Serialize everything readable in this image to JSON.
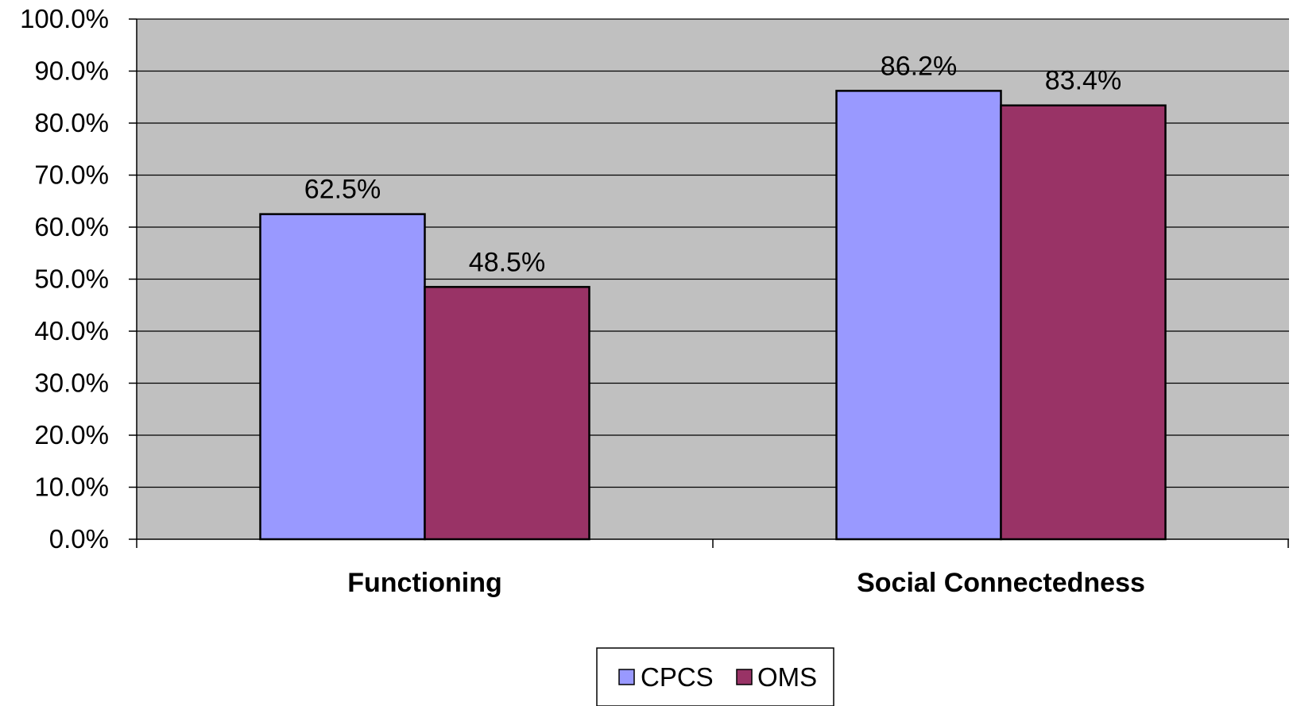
{
  "chart_data": {
    "type": "bar",
    "categories": [
      "Functioning",
      "Social Connectedness"
    ],
    "series": [
      {
        "name": "CPCS",
        "values": [
          62.5,
          86.2
        ],
        "color": "#9999ff"
      },
      {
        "name": "OMS",
        "values": [
          48.5,
          83.4
        ],
        "color": "#993366"
      }
    ],
    "data_labels": [
      [
        "62.5%",
        "86.2%"
      ],
      [
        "48.5%",
        "83.4%"
      ]
    ],
    "yticks": [
      "0.0%",
      "10.0%",
      "20.0%",
      "30.0%",
      "40.0%",
      "50.0%",
      "60.0%",
      "70.0%",
      "80.0%",
      "90.0%",
      "100.0%"
    ],
    "ylim": [
      0,
      100
    ],
    "grid": true,
    "legend_position": "bottom",
    "plot_background": "#c0c0c0"
  }
}
